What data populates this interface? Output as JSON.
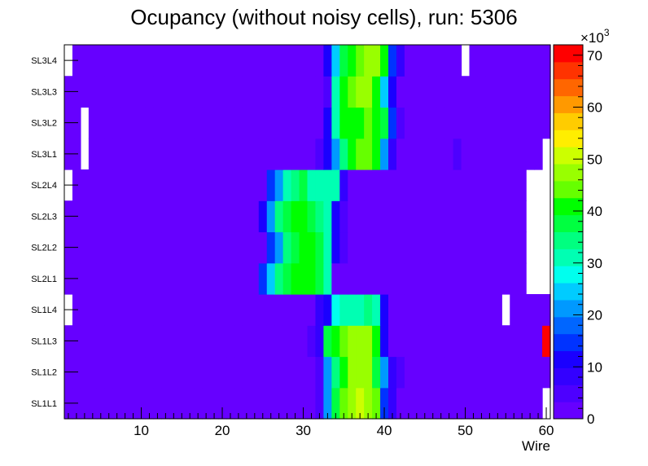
{
  "chart_data": {
    "type": "heatmap",
    "title": "Ocupancy (without noisy cells), run: 5306",
    "xlabel": "Wire",
    "ylabel": "",
    "xlim": [
      0,
      60
    ],
    "x_ticks": [
      "10",
      "20",
      "30",
      "40",
      "50",
      "60"
    ],
    "rows": [
      "SL1L1",
      "SL1L2",
      "SL1L3",
      "SL1L4",
      "SL2L1",
      "SL2L2",
      "SL2L3",
      "SL2L4",
      "SL3L1",
      "SL3L2",
      "SL3L3",
      "SL3L4"
    ],
    "z_unit_label": "×10",
    "z_unit_exponent": "3",
    "z_ticks": [
      "0",
      "10",
      "20",
      "30",
      "40",
      "50",
      "60",
      "70"
    ],
    "zlim": [
      0,
      72
    ],
    "palette": [
      "#6600ff",
      "#4d00ff",
      "#3300ff",
      "#1a00ff",
      "#0033ff",
      "#0066ff",
      "#0099ff",
      "#00ccff",
      "#00ffee",
      "#00ffb3",
      "#00ff80",
      "#00ff40",
      "#00ff00",
      "#66ff00",
      "#99ff00",
      "#ccff00",
      "#ffee00",
      "#ffcc00",
      "#ff9900",
      "#ff6600",
      "#ff3300",
      "#ff0000"
    ],
    "base_value": 2,
    "series": [
      {
        "name": "SL1L1",
        "empty": [
          60
        ],
        "hot": [
          [
            31,
            2
          ],
          [
            32,
            5
          ],
          [
            33,
            22
          ],
          [
            34,
            36
          ],
          [
            35,
            44
          ],
          [
            36,
            48
          ],
          [
            37,
            50
          ],
          [
            38,
            48
          ],
          [
            39,
            44
          ],
          [
            40,
            16
          ],
          [
            41,
            8
          ]
        ]
      },
      {
        "name": "SL1L2",
        "empty": [],
        "hot": [
          [
            32,
            6
          ],
          [
            33,
            22
          ],
          [
            34,
            34
          ],
          [
            35,
            42
          ],
          [
            36,
            48
          ],
          [
            37,
            49
          ],
          [
            38,
            46
          ],
          [
            39,
            38
          ],
          [
            40,
            22
          ],
          [
            41,
            8
          ],
          [
            42,
            5
          ]
        ]
      },
      {
        "name": "SL1L3",
        "empty": [],
        "hot": [
          [
            31,
            4
          ],
          [
            32,
            8
          ],
          [
            33,
            36
          ],
          [
            34,
            40
          ],
          [
            35,
            44
          ],
          [
            36,
            48
          ],
          [
            37,
            49
          ],
          [
            38,
            46
          ],
          [
            39,
            40
          ],
          [
            40,
            12
          ],
          [
            60,
            72
          ]
        ]
      },
      {
        "name": "SL1L4",
        "empty": [
          1,
          55
        ],
        "hot": [
          [
            32,
            7
          ],
          [
            33,
            10
          ],
          [
            34,
            28
          ],
          [
            35,
            32
          ],
          [
            36,
            32
          ],
          [
            37,
            32
          ],
          [
            38,
            33
          ],
          [
            39,
            32
          ],
          [
            40,
            10
          ]
        ]
      },
      {
        "name": "SL2L1",
        "empty": [
          58,
          59,
          60
        ],
        "hot": [
          [
            25,
            14
          ],
          [
            26,
            26
          ],
          [
            27,
            34
          ],
          [
            28,
            38
          ],
          [
            29,
            40
          ],
          [
            30,
            40
          ],
          [
            31,
            40
          ],
          [
            32,
            38
          ],
          [
            33,
            30
          ]
        ]
      },
      {
        "name": "SL2L2",
        "empty": [
          58,
          59,
          60
        ],
        "hot": [
          [
            26,
            14
          ],
          [
            27,
            22
          ],
          [
            28,
            34
          ],
          [
            29,
            38
          ],
          [
            30,
            40
          ],
          [
            31,
            40
          ],
          [
            32,
            38
          ],
          [
            33,
            32
          ],
          [
            34,
            10
          ],
          [
            35,
            6
          ]
        ]
      },
      {
        "name": "SL2L3",
        "empty": [
          58,
          59,
          60
        ],
        "hot": [
          [
            25,
            10
          ],
          [
            26,
            22
          ],
          [
            27,
            34
          ],
          [
            28,
            38
          ],
          [
            29,
            40
          ],
          [
            30,
            40
          ],
          [
            31,
            38
          ],
          [
            32,
            34
          ],
          [
            33,
            30
          ],
          [
            34,
            10
          ],
          [
            35,
            6
          ]
        ]
      },
      {
        "name": "SL2L4",
        "empty": [
          1,
          58,
          59,
          60
        ],
        "hot": [
          [
            26,
            14
          ],
          [
            27,
            22
          ],
          [
            28,
            30
          ],
          [
            29,
            34
          ],
          [
            30,
            36
          ],
          [
            31,
            32
          ],
          [
            32,
            32
          ],
          [
            33,
            32
          ],
          [
            34,
            30
          ],
          [
            35,
            8
          ]
        ]
      },
      {
        "name": "SL3L1",
        "empty": [
          3,
          60
        ],
        "hot": [
          [
            32,
            6
          ],
          [
            33,
            10
          ],
          [
            34,
            22
          ],
          [
            35,
            34
          ],
          [
            36,
            40
          ],
          [
            37,
            44
          ],
          [
            38,
            44
          ],
          [
            39,
            42
          ],
          [
            40,
            22
          ],
          [
            41,
            8
          ],
          [
            49,
            6
          ]
        ]
      },
      {
        "name": "SL3L2",
        "empty": [
          3
        ],
        "hot": [
          [
            33,
            10
          ],
          [
            34,
            30
          ],
          [
            35,
            40
          ],
          [
            36,
            42
          ],
          [
            37,
            42
          ],
          [
            38,
            44
          ],
          [
            39,
            40
          ],
          [
            40,
            36
          ],
          [
            41,
            16
          ],
          [
            42,
            6
          ]
        ]
      },
      {
        "name": "SL3L3",
        "empty": [],
        "hot": [
          [
            33,
            6
          ],
          [
            34,
            30
          ],
          [
            35,
            40
          ],
          [
            36,
            44
          ],
          [
            37,
            48
          ],
          [
            38,
            46
          ],
          [
            39,
            42
          ],
          [
            40,
            26
          ],
          [
            41,
            10
          ]
        ]
      },
      {
        "name": "SL3L4",
        "empty": [
          1,
          50
        ],
        "hot": [
          [
            33,
            10
          ],
          [
            34,
            24
          ],
          [
            35,
            38
          ],
          [
            36,
            42
          ],
          [
            37,
            44
          ],
          [
            38,
            46
          ],
          [
            39,
            48
          ],
          [
            40,
            42
          ],
          [
            41,
            16
          ],
          [
            42,
            8
          ]
        ]
      }
    ]
  }
}
